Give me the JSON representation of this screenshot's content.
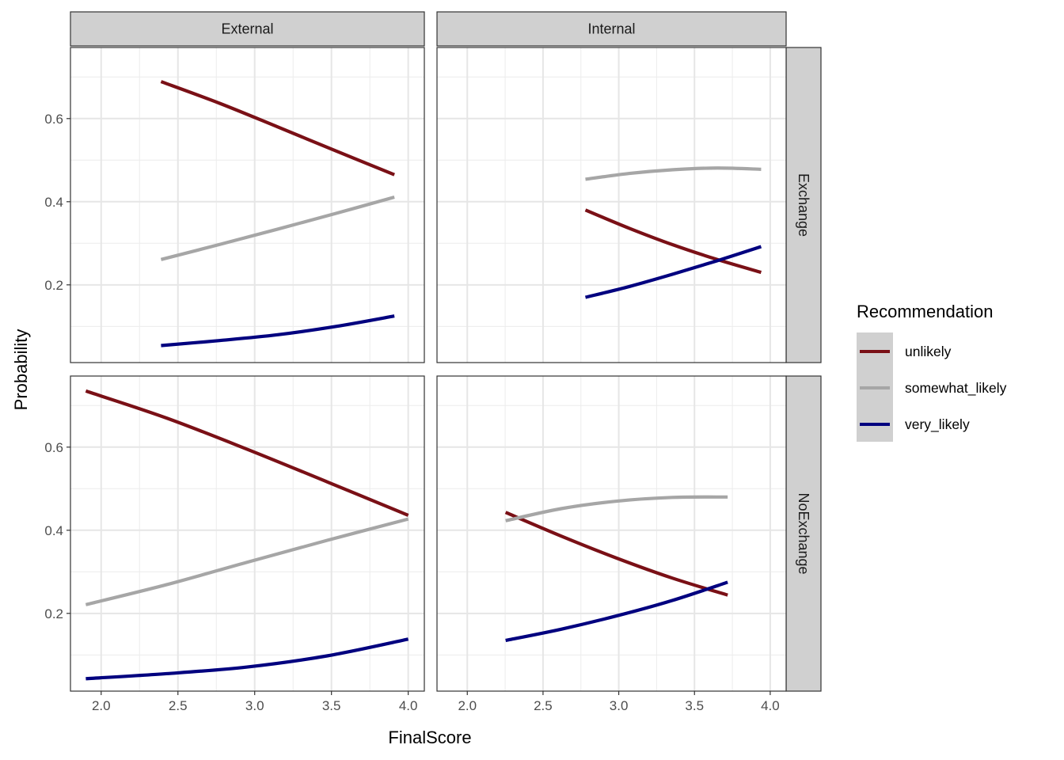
{
  "chart_data": {
    "type": "line",
    "xlabel": "FinalScore",
    "ylabel": "Probability",
    "xlim": [
      1.8,
      4.105
    ],
    "ylim": [
      0.013,
      0.771
    ],
    "x_ticks": [
      "2.0",
      "2.5",
      "3.0",
      "3.5",
      "4.0"
    ],
    "x_tick_values": [
      2.0,
      2.5,
      3.0,
      3.5,
      4.0
    ],
    "y_ticks": [
      "0.2",
      "0.4",
      "0.6"
    ],
    "y_tick_values": [
      0.2,
      0.4,
      0.6
    ],
    "grid": true,
    "facet_cols": [
      "External",
      "Internal"
    ],
    "facet_rows": [
      "Exchange",
      "NoExchange"
    ],
    "legend": {
      "title": "Recommendation",
      "placement": "right",
      "entries": [
        {
          "name": "unlikely",
          "color": "#7a1016"
        },
        {
          "name": "somewhat_likely",
          "color": "#a6a6a6"
        },
        {
          "name": "very_likely",
          "color": "#00007f"
        }
      ]
    },
    "panels": [
      {
        "col": "External",
        "row": "Exchange",
        "x": [
          2.39,
          2.77,
          3.15,
          3.53,
          3.91
        ],
        "series": [
          {
            "name": "unlikely",
            "values": [
              0.689,
              0.637,
              0.58,
              0.522,
              0.465
            ]
          },
          {
            "name": "somewhat_likely",
            "values": [
              0.261,
              0.297,
              0.334,
              0.372,
              0.411
            ]
          },
          {
            "name": "very_likely",
            "values": [
              0.054,
              0.066,
              0.08,
              0.1,
              0.125
            ]
          }
        ]
      },
      {
        "col": "Internal",
        "row": "Exchange",
        "x": [
          2.78,
          3.07,
          3.36,
          3.65,
          3.94
        ],
        "series": [
          {
            "name": "unlikely",
            "values": [
              0.38,
              0.336,
              0.296,
              0.261,
              0.23
            ]
          },
          {
            "name": "somewhat_likely",
            "values": [
              0.454,
              0.468,
              0.477,
              0.481,
              0.478
            ]
          },
          {
            "name": "very_likely",
            "values": [
              0.17,
              0.196,
              0.226,
              0.258,
              0.292
            ]
          }
        ]
      },
      {
        "col": "External",
        "row": "NoExchange",
        "x": [
          1.9,
          2.425,
          2.95,
          3.475,
          4.0
        ],
        "series": [
          {
            "name": "unlikely",
            "values": [
              0.735,
              0.67,
              0.595,
              0.516,
              0.436
            ]
          },
          {
            "name": "somewhat_likely",
            "values": [
              0.221,
              0.269,
              0.323,
              0.376,
              0.427
            ]
          },
          {
            "name": "very_likely",
            "values": [
              0.043,
              0.055,
              0.071,
              0.098,
              0.138
            ]
          }
        ]
      },
      {
        "col": "Internal",
        "row": "NoExchange",
        "x": [
          2.253,
          2.62,
          2.986,
          3.353,
          3.719
        ],
        "series": [
          {
            "name": "unlikely",
            "values": [
              0.443,
              0.386,
              0.333,
              0.285,
              0.244
            ]
          },
          {
            "name": "somewhat_likely",
            "values": [
              0.423,
              0.452,
              0.47,
              0.479,
              0.48
            ]
          },
          {
            "name": "very_likely",
            "values": [
              0.135,
              0.162,
              0.194,
              0.231,
              0.275
            ]
          }
        ]
      }
    ]
  }
}
